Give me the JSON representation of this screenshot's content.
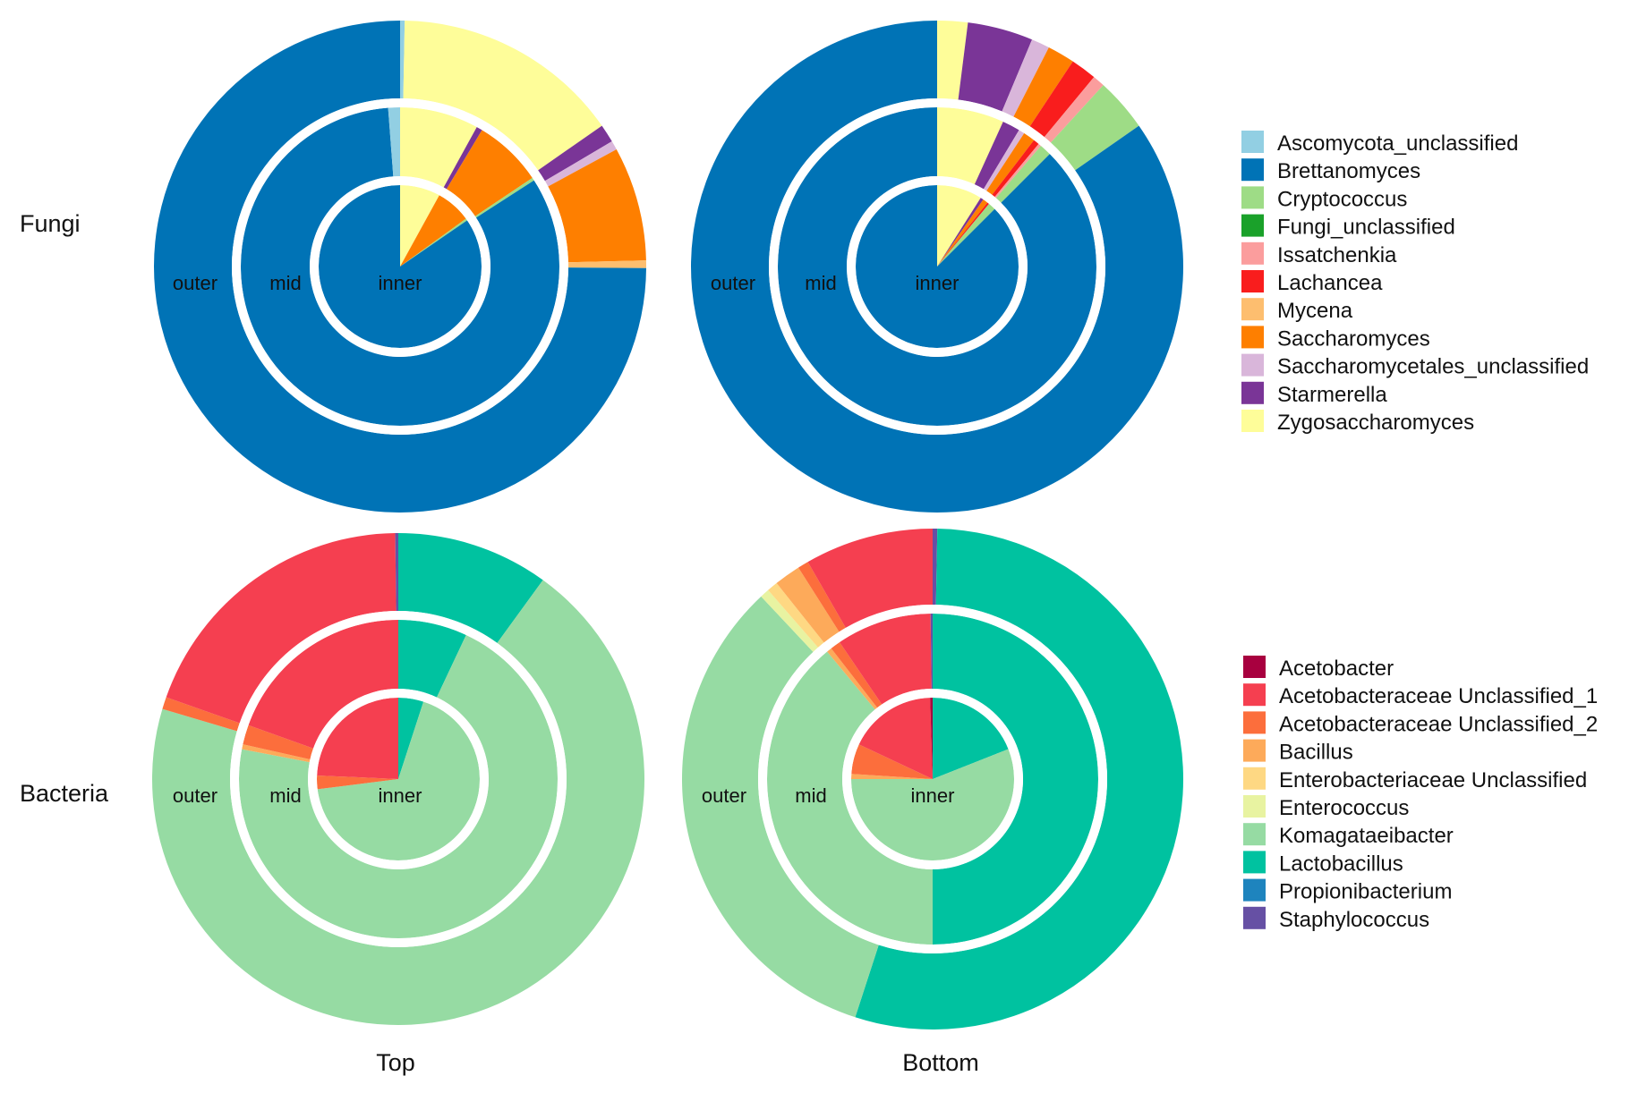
{
  "figure": {
    "row_labels": [
      "Fungi",
      "Bacteria"
    ],
    "column_labels": [
      "Top",
      "Bottom"
    ],
    "ring_labels": [
      "outer",
      "mid",
      "inner"
    ]
  },
  "legends": {
    "fungi": [
      {
        "name": "Ascomycota_unclassified",
        "color": "#92cfe3"
      },
      {
        "name": "Brettanomyces",
        "color": "#0073b6"
      },
      {
        "name": "Cryptococcus",
        "color": "#9edc86"
      },
      {
        "name": "Fungi_unclassified",
        "color": "#1aa12a"
      },
      {
        "name": "Issatchenkia",
        "color": "#fb9d9d"
      },
      {
        "name": "Lachancea",
        "color": "#f91d1d"
      },
      {
        "name": "Mycena",
        "color": "#fdbe6f"
      },
      {
        "name": "Saccharomyces",
        "color": "#fe7f00"
      },
      {
        "name": "Saccharomycetales_unclassified",
        "color": "#d9b6da"
      },
      {
        "name": "Starmerella",
        "color": "#7a3597"
      },
      {
        "name": "Zygosaccharomyces",
        "color": "#fefd99"
      }
    ],
    "bacteria": [
      {
        "name": "Acetobacter",
        "color": "#a8003f"
      },
      {
        "name": "Acetobacteraceae Unclassified_1",
        "color": "#f53f50"
      },
      {
        "name": "Acetobacteraceae Unclassified_2",
        "color": "#fc6e3c"
      },
      {
        "name": "Bacillus",
        "color": "#fdaa5a"
      },
      {
        "name": "Enterobacteriaceae Unclassified",
        "color": "#fed883"
      },
      {
        "name": "Enterococcus",
        "color": "#e8f3a1"
      },
      {
        "name": "Komagataeibacter",
        "color": "#96dba3"
      },
      {
        "name": "Lactobacillus",
        "color": "#00c2a0"
      },
      {
        "name": "Propionibacterium",
        "color": "#1e84be"
      },
      {
        "name": "Staphylococcus",
        "color": "#6650a4"
      }
    ]
  },
  "chart_data": [
    {
      "type": "pie",
      "title": "Fungi - Top",
      "unit": "percent",
      "rings": [
        {
          "name": "outer",
          "slices": [
            {
              "label": "Ascomycota_unclassified",
              "value": 0.3
            },
            {
              "label": "Zygosaccharomyces",
              "value": 15.0
            },
            {
              "label": "Starmerella",
              "value": 1.2
            },
            {
              "label": "Saccharomycetales_unclassified",
              "value": 0.6
            },
            {
              "label": "Saccharomyces",
              "value": 7.5
            },
            {
              "label": "Mycena",
              "value": 0.5
            },
            {
              "label": "Brettanomyces",
              "value": 74.9
            }
          ]
        },
        {
          "name": "mid",
          "slices": [
            {
              "label": "Zygosaccharomyces",
              "value": 8.0
            },
            {
              "label": "Starmerella",
              "value": 0.6
            },
            {
              "label": "Saccharomyces",
              "value": 7.0
            },
            {
              "label": "Cryptococcus",
              "value": 0.3
            },
            {
              "label": "Brettanomyces",
              "value": 82.9
            },
            {
              "label": "Ascomycota_unclassified",
              "value": 1.2
            }
          ]
        },
        {
          "name": "inner",
          "slices": [
            {
              "label": "Zygosaccharomyces",
              "value": 8.0
            },
            {
              "label": "Saccharomyces",
              "value": 7.0
            },
            {
              "label": "Cryptococcus",
              "value": 0.4
            },
            {
              "label": "Brettanomyces",
              "value": 84.6
            }
          ]
        }
      ]
    },
    {
      "type": "pie",
      "title": "Fungi - Bottom",
      "unit": "percent",
      "rings": [
        {
          "name": "outer",
          "slices": [
            {
              "label": "Zygosaccharomyces",
              "value": 2.0
            },
            {
              "label": "Starmerella",
              "value": 4.3
            },
            {
              "label": "Saccharomycetales_unclassified",
              "value": 1.2
            },
            {
              "label": "Saccharomyces",
              "value": 1.8
            },
            {
              "label": "Lachancea",
              "value": 1.7
            },
            {
              "label": "Issatchenkia",
              "value": 0.8
            },
            {
              "label": "Cryptococcus",
              "value": 3.5
            },
            {
              "label": "Brettanomyces",
              "value": 84.7
            }
          ]
        },
        {
          "name": "mid",
          "slices": [
            {
              "label": "Zygosaccharomyces",
              "value": 6.8
            },
            {
              "label": "Starmerella",
              "value": 1.8
            },
            {
              "label": "Saccharomycetales_unclassified",
              "value": 0.6
            },
            {
              "label": "Saccharomyces",
              "value": 1.2
            },
            {
              "label": "Lachancea",
              "value": 0.6
            },
            {
              "label": "Issatchenkia",
              "value": 0.3
            },
            {
              "label": "Cryptococcus",
              "value": 1.2
            },
            {
              "label": "Brettanomyces",
              "value": 87.5
            }
          ]
        },
        {
          "name": "inner",
          "slices": [
            {
              "label": "Zygosaccharomyces",
              "value": 9.0
            },
            {
              "label": "Starmerella",
              "value": 0.6
            },
            {
              "label": "Saccharomyces",
              "value": 1.0
            },
            {
              "label": "Lachancea",
              "value": 0.4
            },
            {
              "label": "Cryptococcus",
              "value": 1.5
            },
            {
              "label": "Brettanomyces",
              "value": 87.5
            }
          ]
        }
      ]
    },
    {
      "type": "pie",
      "title": "Bacteria - Top",
      "unit": "percent",
      "rings": [
        {
          "name": "outer",
          "slices": [
            {
              "label": "Lactobacillus",
              "value": 10.0
            },
            {
              "label": "Komagataeibacter",
              "value": 69.6
            },
            {
              "label": "Acetobacteraceae Unclassified_2",
              "value": 0.8
            },
            {
              "label": "Acetobacteraceae Unclassified_1",
              "value": 19.4
            },
            {
              "label": "Staphylococcus",
              "value": 0.2
            }
          ]
        },
        {
          "name": "mid",
          "slices": [
            {
              "label": "Lactobacillus",
              "value": 7.0
            },
            {
              "label": "Komagataeibacter",
              "value": 71.0
            },
            {
              "label": "Bacillus",
              "value": 0.5
            },
            {
              "label": "Acetobacteraceae Unclassified_2",
              "value": 2.0
            },
            {
              "label": "Acetobacteraceae Unclassified_1",
              "value": 19.5
            }
          ]
        },
        {
          "name": "inner",
          "slices": [
            {
              "label": "Lactobacillus",
              "value": 5.0
            },
            {
              "label": "Komagataeibacter",
              "value": 68.0
            },
            {
              "label": "Acetobacteraceae Unclassified_2",
              "value": 2.7
            },
            {
              "label": "Acetobacteraceae Unclassified_1",
              "value": 24.3
            }
          ]
        }
      ]
    },
    {
      "type": "pie",
      "title": "Bacteria - Bottom",
      "unit": "percent",
      "rings": [
        {
          "name": "outer",
          "slices": [
            {
              "label": "Staphylococcus",
              "value": 0.3
            },
            {
              "label": "Lactobacillus",
              "value": 54.7
            },
            {
              "label": "Komagataeibacter",
              "value": 33.0
            },
            {
              "label": "Enterococcus",
              "value": 0.6
            },
            {
              "label": "Enterobacteriaceae Unclassified",
              "value": 0.7
            },
            {
              "label": "Bacillus",
              "value": 1.7
            },
            {
              "label": "Acetobacteraceae Unclassified_2",
              "value": 0.7
            },
            {
              "label": "Acetobacteraceae Unclassified_1",
              "value": 8.3
            }
          ]
        },
        {
          "name": "mid",
          "slices": [
            {
              "label": "Lactobacillus",
              "value": 50.0
            },
            {
              "label": "Komagataeibacter",
              "value": 39.0
            },
            {
              "label": "Bacillus",
              "value": 0.5
            },
            {
              "label": "Acetobacteraceae Unclassified_2",
              "value": 1.0
            },
            {
              "label": "Acetobacteraceae Unclassified_1",
              "value": 9.3
            },
            {
              "label": "Staphylococcus",
              "value": 0.2
            }
          ]
        },
        {
          "name": "inner",
          "slices": [
            {
              "label": "Lactobacillus",
              "value": 19.0
            },
            {
              "label": "Komagataeibacter",
              "value": 56.0
            },
            {
              "label": "Bacillus",
              "value": 1.0
            },
            {
              "label": "Acetobacteraceae Unclassified_2",
              "value": 6.0
            },
            {
              "label": "Acetobacteraceae Unclassified_1",
              "value": 17.5
            },
            {
              "label": "Acetobacter",
              "value": 0.5
            }
          ]
        }
      ]
    }
  ]
}
